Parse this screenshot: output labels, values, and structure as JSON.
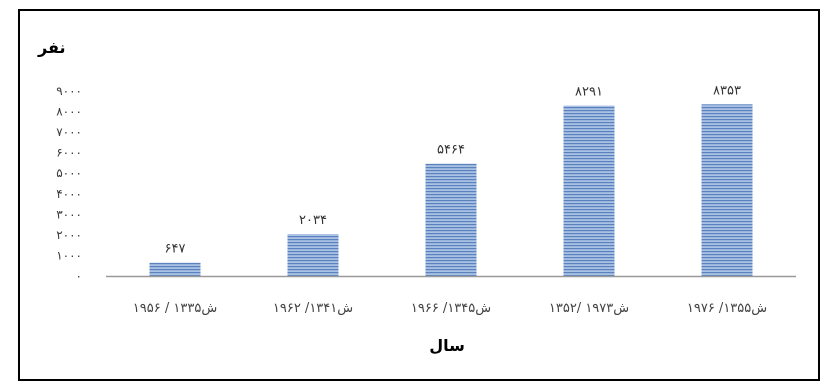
{
  "chart_data": {
    "type": "bar",
    "ylabel": "نفر",
    "xlabel": "سال",
    "categories": [
      "۱۹۵۶ / ۱۳۳۵ش",
      "۱۹۶۲ /۱۳۴۱ش",
      "۱۹۶۶ /۱۳۴۵ش",
      "۱۳۵۲/ ۱۹۷۳ش",
      "۱۹۷۶ /۱۳۵۵ش"
    ],
    "values": [
      647,
      2034,
      5464,
      8291,
      8353
    ],
    "value_labels": [
      "۶۴۷",
      "۲۰۳۴",
      "۵۴۶۴",
      "۸۲۹۱",
      "۸۳۵۳"
    ],
    "ylim": [
      0,
      9000
    ],
    "yticks": [
      "۰",
      "۱۰۰۰",
      "۲۰۰۰",
      "۳۰۰۰",
      "۴۰۰۰",
      "۵۰۰۰",
      "۶۰۰۰",
      "۷۰۰۰",
      "۸۰۰۰",
      "۹۰۰۰"
    ],
    "grid": false,
    "legend": "none",
    "colors": {
      "bar": "#8fb0d8",
      "bar_stripe": "#5b82bf",
      "axis": "#9a9a9a",
      "frame": "#000000"
    }
  }
}
